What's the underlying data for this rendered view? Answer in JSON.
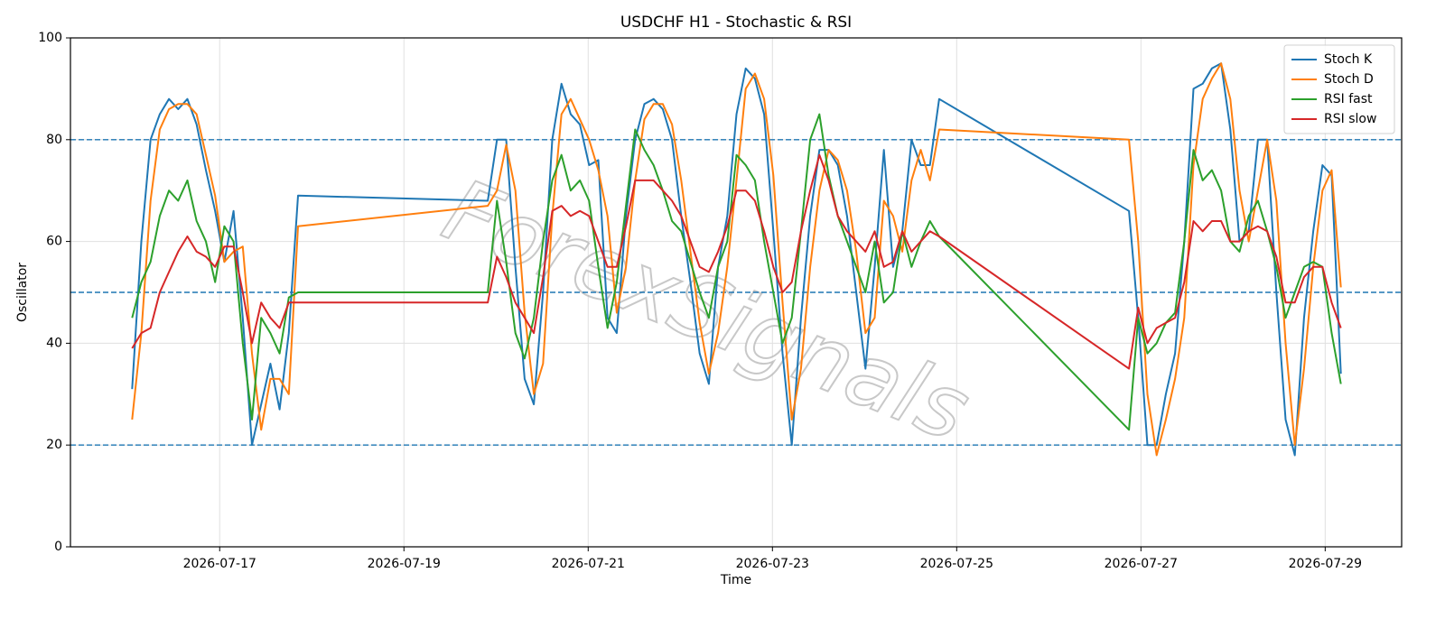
{
  "chart_data": {
    "type": "line",
    "title": "USDCHF H1 - Stochastic & RSI",
    "x_label": "Time",
    "y_label": "Oscillator",
    "watermark": "ForexSignals",
    "x": [
      16.05,
      16.15,
      16.25,
      16.35,
      16.45,
      16.55,
      16.65,
      16.75,
      16.85,
      16.95,
      17.05,
      17.15,
      17.25,
      17.35,
      17.45,
      17.55,
      17.65,
      17.75,
      17.85,
      19.91,
      20.01,
      20.11,
      20.21,
      20.31,
      20.41,
      20.51,
      20.61,
      20.71,
      20.81,
      20.91,
      21.01,
      21.11,
      21.21,
      21.31,
      21.41,
      21.51,
      21.61,
      21.71,
      21.81,
      21.91,
      22.01,
      22.11,
      22.21,
      22.31,
      22.41,
      22.51,
      22.61,
      22.71,
      22.81,
      22.91,
      23.01,
      23.11,
      23.21,
      23.31,
      23.41,
      23.51,
      23.61,
      23.71,
      23.81,
      23.91,
      24.01,
      24.11,
      24.21,
      24.31,
      24.41,
      24.51,
      24.61,
      24.71,
      24.81,
      26.87,
      26.97,
      27.07,
      27.17,
      27.27,
      27.37,
      27.47,
      27.57,
      27.67,
      27.77,
      27.87,
      27.97,
      28.07,
      28.17,
      28.27,
      28.37,
      28.47,
      28.57,
      28.67,
      28.77,
      28.87,
      28.97,
      29.07,
      29.17
    ],
    "series": [
      {
        "name": "Stoch K",
        "color": "#1f77b4",
        "values": [
          31,
          60,
          80,
          85,
          88,
          86,
          88,
          83,
          74,
          66,
          56,
          66,
          45,
          20,
          28,
          36,
          27,
          42,
          69,
          68,
          80,
          80,
          55,
          33,
          28,
          50,
          80,
          91,
          85,
          83,
          75,
          76,
          45,
          42,
          65,
          80,
          87,
          88,
          86,
          80,
          65,
          52,
          38,
          32,
          55,
          65,
          85,
          94,
          92,
          85,
          62,
          38,
          20,
          45,
          65,
          78,
          78,
          75,
          65,
          50,
          35,
          55,
          78,
          55,
          62,
          80,
          75,
          75,
          88,
          66,
          45,
          20,
          20,
          30,
          38,
          60,
          90,
          91,
          94,
          95,
          82,
          60,
          62,
          80,
          80,
          50,
          25,
          18,
          45,
          62,
          75,
          73,
          34
        ]
      },
      {
        "name": "Stoch D",
        "color": "#ff7f0e",
        "values": [
          25,
          42,
          68,
          82,
          86,
          87,
          87,
          85,
          77,
          69,
          56,
          58,
          59,
          38,
          23,
          33,
          33,
          30,
          63,
          67,
          70,
          79,
          70,
          46,
          30,
          36,
          65,
          85,
          88,
          84,
          80,
          74,
          65,
          46,
          55,
          72,
          84,
          87,
          87,
          83,
          72,
          58,
          44,
          34,
          42,
          55,
          72,
          90,
          93,
          88,
          73,
          48,
          25,
          35,
          55,
          70,
          78,
          76,
          70,
          58,
          42,
          45,
          68,
          65,
          58,
          72,
          78,
          72,
          82,
          80,
          60,
          30,
          18,
          25,
          33,
          45,
          75,
          88,
          92,
          95,
          88,
          70,
          60,
          70,
          80,
          68,
          40,
          20,
          35,
          55,
          70,
          74,
          51
        ]
      },
      {
        "name": "RSI fast",
        "color": "#2ca02c",
        "values": [
          45,
          52,
          56,
          65,
          70,
          68,
          72,
          64,
          60,
          52,
          63,
          60,
          40,
          25,
          45,
          42,
          38,
          49,
          50,
          50,
          68,
          56,
          42,
          37,
          45,
          60,
          72,
          77,
          70,
          72,
          68,
          55,
          43,
          52,
          67,
          82,
          78,
          75,
          70,
          64,
          62,
          56,
          50,
          45,
          55,
          60,
          77,
          75,
          72,
          60,
          50,
          40,
          45,
          62,
          80,
          85,
          73,
          65,
          60,
          55,
          50,
          60,
          48,
          50,
          62,
          55,
          60,
          64,
          61,
          23,
          45,
          38,
          40,
          44,
          46,
          60,
          78,
          72,
          74,
          70,
          60,
          58,
          65,
          68,
          62,
          55,
          45,
          50,
          55,
          56,
          55,
          42,
          32
        ]
      },
      {
        "name": "RSI slow",
        "color": "#d62728",
        "values": [
          39,
          42,
          43,
          50,
          54,
          58,
          61,
          58,
          57,
          55,
          59,
          59,
          50,
          40,
          48,
          45,
          43,
          48,
          48,
          48,
          57,
          53,
          48,
          45,
          42,
          53,
          66,
          67,
          65,
          66,
          65,
          60,
          55,
          55,
          63,
          72,
          72,
          72,
          70,
          68,
          65,
          60,
          55,
          54,
          58,
          63,
          70,
          70,
          68,
          62,
          55,
          50,
          52,
          62,
          70,
          77,
          72,
          65,
          62,
          60,
          58,
          62,
          55,
          56,
          62,
          58,
          60,
          62,
          61,
          35,
          47,
          40,
          43,
          44,
          45,
          52,
          64,
          62,
          64,
          64,
          60,
          60,
          62,
          63,
          62,
          57,
          48,
          48,
          53,
          55,
          55,
          48,
          43
        ]
      }
    ],
    "xlim": [
      15.38,
      29.83
    ],
    "xticks": [
      {
        "value": 17,
        "label": "2026-07-17"
      },
      {
        "value": 19,
        "label": "2026-07-19"
      },
      {
        "value": 21,
        "label": "2026-07-21"
      },
      {
        "value": 23,
        "label": "2026-07-23"
      },
      {
        "value": 25,
        "label": "2026-07-25"
      },
      {
        "value": 27,
        "label": "2026-07-27"
      },
      {
        "value": 29,
        "label": "2026-07-29"
      }
    ],
    "ylim": [
      0,
      100
    ],
    "yticks": [
      0,
      20,
      40,
      60,
      80,
      100
    ],
    "hlines": [
      20,
      50,
      80
    ],
    "grid": true,
    "legend": "upper right"
  }
}
